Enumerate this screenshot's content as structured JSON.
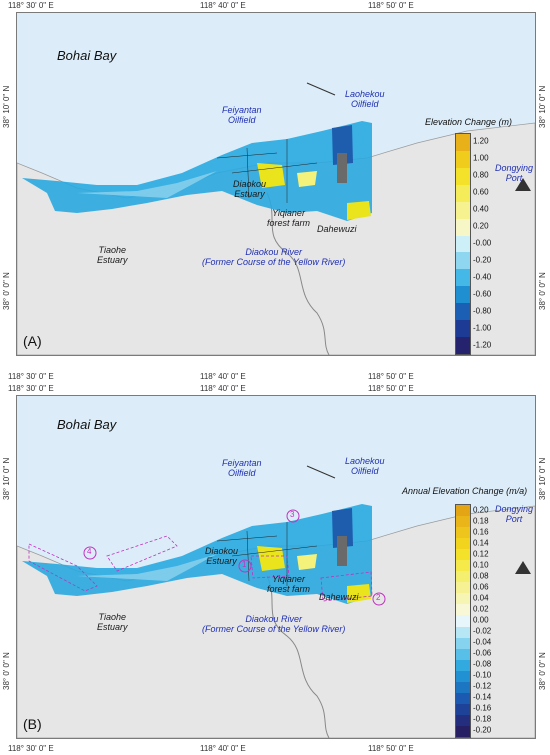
{
  "coords": {
    "top": [
      "118° 30' 0\" E",
      "118° 40' 0\" E",
      "118° 50' 0\" E"
    ],
    "left": [
      "38° 10' 0\" N",
      "38° 0' 0\" N"
    ]
  },
  "labels": {
    "bay": "Bohai Bay",
    "feiyantan": "Feiyantan\nOilfield",
    "laohekou": "Laohekou\nOilfield",
    "dongying": "Dongying\nPort",
    "diaokou_estuary": "Diaokou\nEstuary",
    "yiqianer": "Yiqianer\nforest farm",
    "dahewuzi": "Dahewuzi",
    "tiaohe": "Tiaohe\nEstuary",
    "river": "Diaokou River\n(Former Course of the Yellow River)"
  },
  "panel_a": {
    "tag": "(A)",
    "legend_title": "Elevation Change (m)",
    "ticks": [
      "1.20",
      "1.00",
      "0.80",
      "0.60",
      "0.40",
      "0.20",
      "-0.00",
      "-0.20",
      "-0.40",
      "-0.60",
      "-0.80",
      "-1.00",
      "-1.20"
    ]
  },
  "panel_b": {
    "tag": "(B)",
    "legend_title": "Annual Elevation Change (m/a)",
    "ticks": [
      "0.20",
      "0.18",
      "0.16",
      "0.14",
      "0.12",
      "0.10",
      "0.08",
      "0.06",
      "0.04",
      "0.02",
      "0.00",
      "-0.02",
      "-0.04",
      "-0.06",
      "-0.08",
      "-0.10",
      "-0.12",
      "-0.14",
      "-0.16",
      "-0.18",
      "-0.20"
    ],
    "markers": [
      "1",
      "2",
      "3",
      "4"
    ]
  },
  "colors": {
    "sea": "#dcedf9",
    "land": "#e6e6e6",
    "strip_blue": "#29a8df",
    "strip_light": "#8fd3ef",
    "strip_yellow": "#e9e41c",
    "circle": "#c032c0",
    "label_blue": "#1f2fb3"
  }
}
